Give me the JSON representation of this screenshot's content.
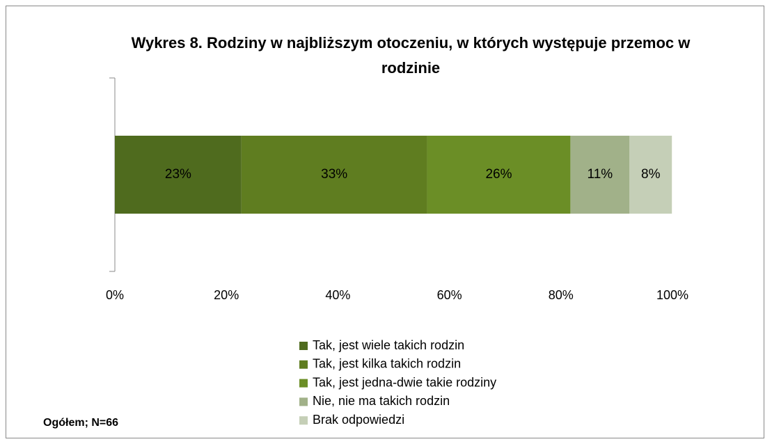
{
  "chart_data": {
    "type": "stacked_bar_horizontal",
    "title": "Wykres 8. Rodziny w najbliższym otoczeniu, w których występuje przemoc w rodzinie",
    "annotation": "Ogółem; N=66",
    "series": [
      {
        "name": "Tak, jest wiele takich rodzin",
        "color": "#4f6b1e",
        "values": [
          22.7
        ],
        "value_labels": [
          "23%"
        ]
      },
      {
        "name": "Tak, jest kilka takich rodzin",
        "color": "#5f7d20",
        "values": [
          33.3
        ],
        "value_labels": [
          "33%"
        ]
      },
      {
        "name": "Tak, jest jedna-dwie takie rodziny",
        "color": "#6b8e26",
        "values": [
          25.7
        ],
        "value_labels": [
          "26%"
        ]
      },
      {
        "name": "Nie, nie ma takich rodzin",
        "color": "#a1b189",
        "values": [
          10.6
        ],
        "value_labels": [
          "11%"
        ]
      },
      {
        "name": "Brak odpowiedzi",
        "color": "#c5cfb7",
        "values": [
          7.6
        ],
        "value_labels": [
          "8%"
        ]
      }
    ],
    "xlim": [
      0,
      100
    ],
    "xticks": [
      {
        "value": 0,
        "label": "0%"
      },
      {
        "value": 20,
        "label": "20%"
      },
      {
        "value": 40,
        "label": "40%"
      },
      {
        "value": 60,
        "label": "60%"
      },
      {
        "value": 80,
        "label": "80%"
      },
      {
        "value": 100,
        "label": "100%"
      }
    ]
  }
}
